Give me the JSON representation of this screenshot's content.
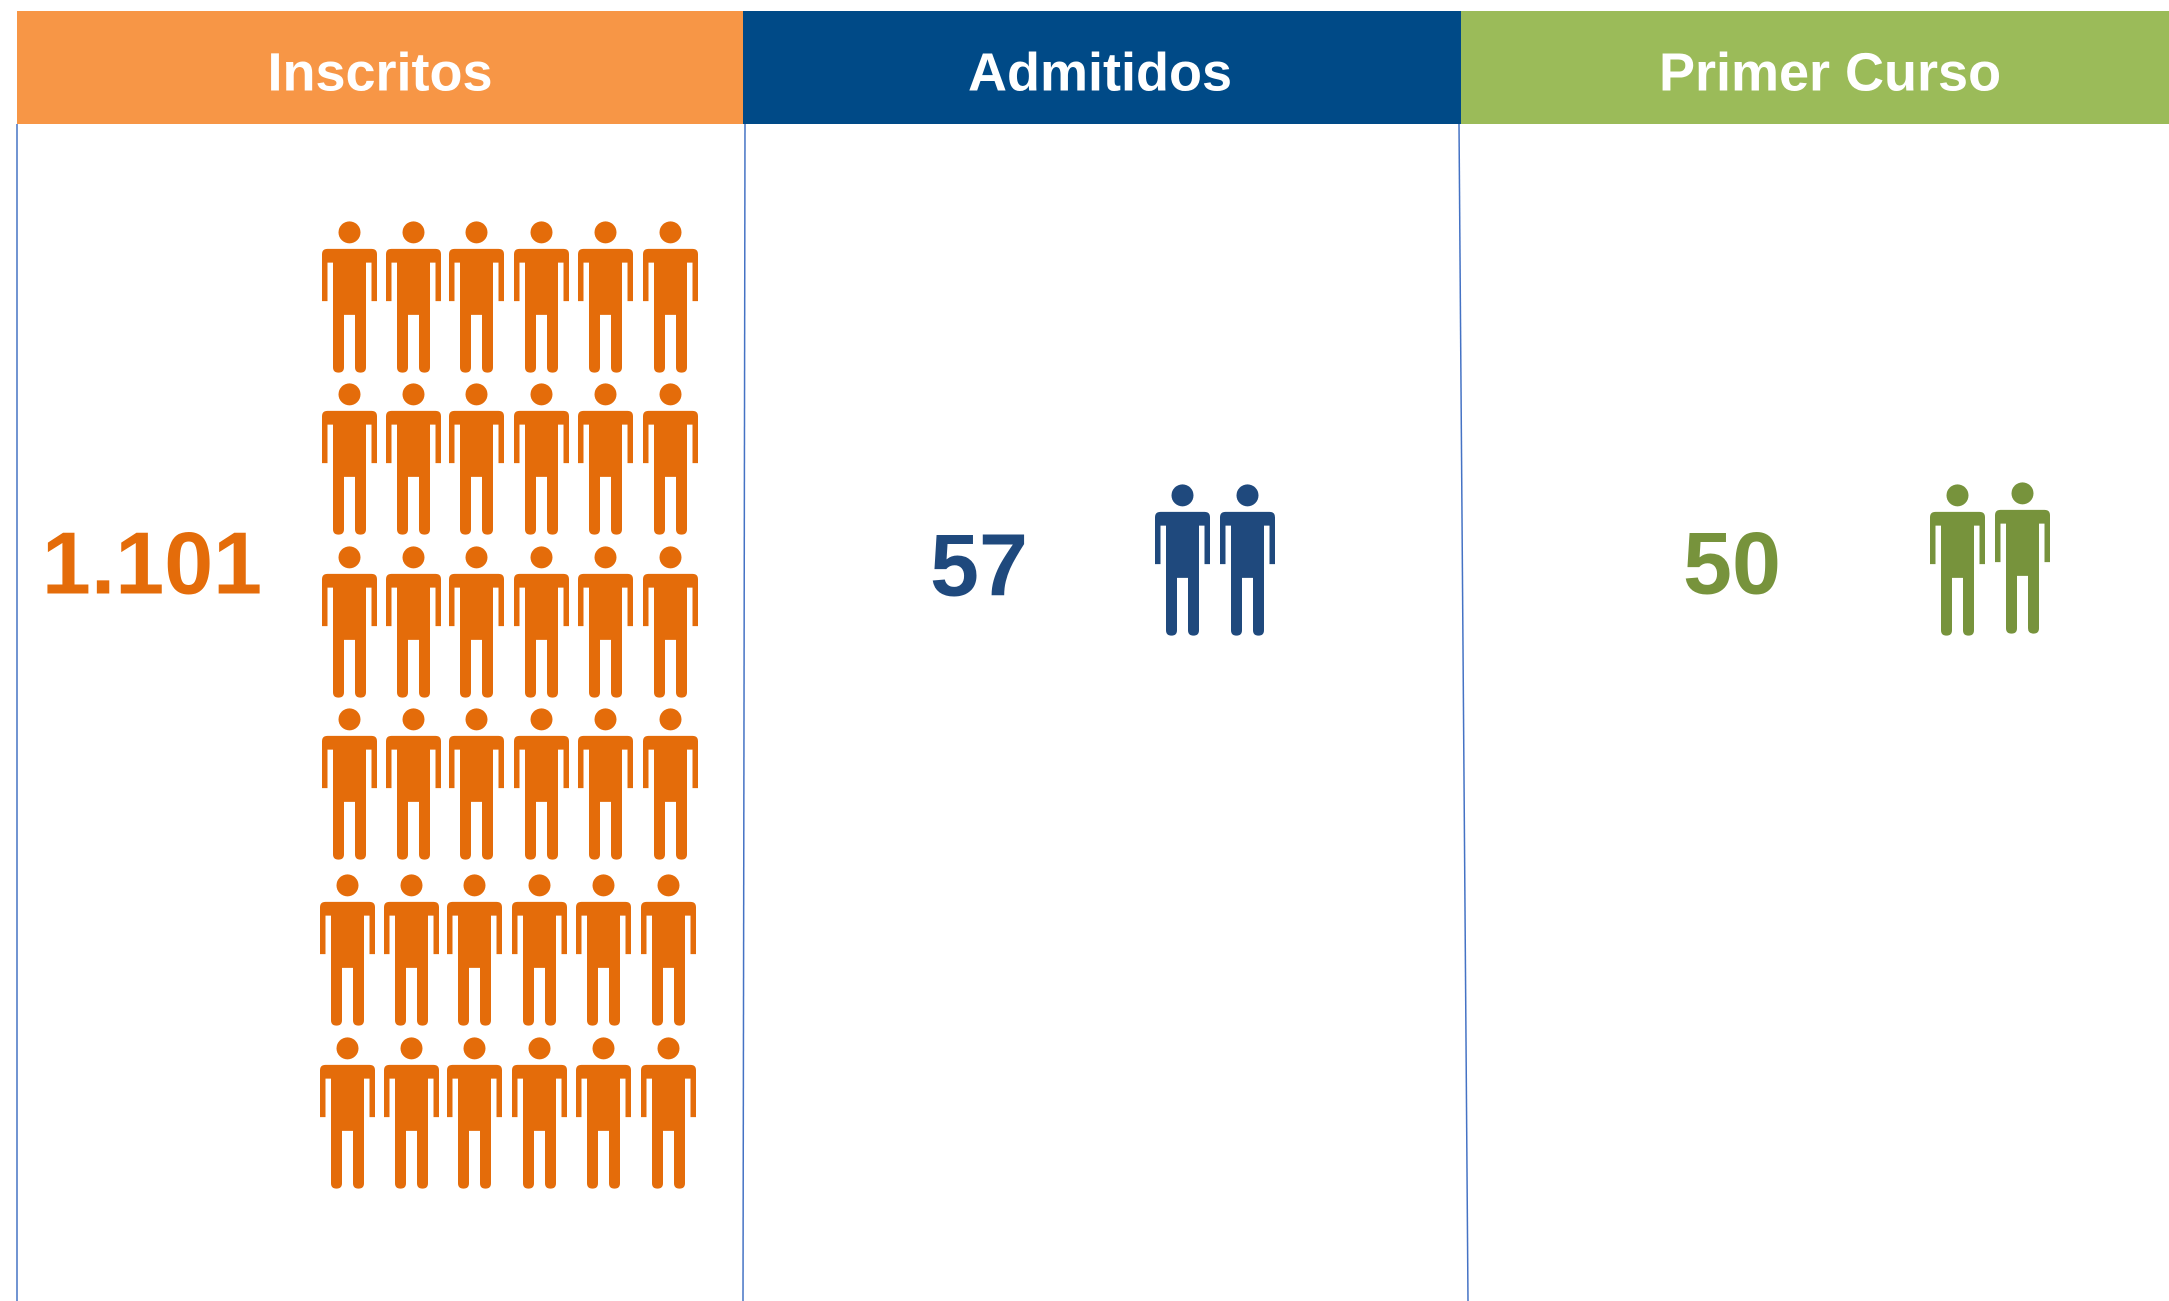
{
  "columns": [
    {
      "header": "Inscritos",
      "value": "1.101"
    },
    {
      "header": "Admitidos",
      "value": "57"
    },
    {
      "header": "Primer Curso",
      "value": "50"
    }
  ]
}
